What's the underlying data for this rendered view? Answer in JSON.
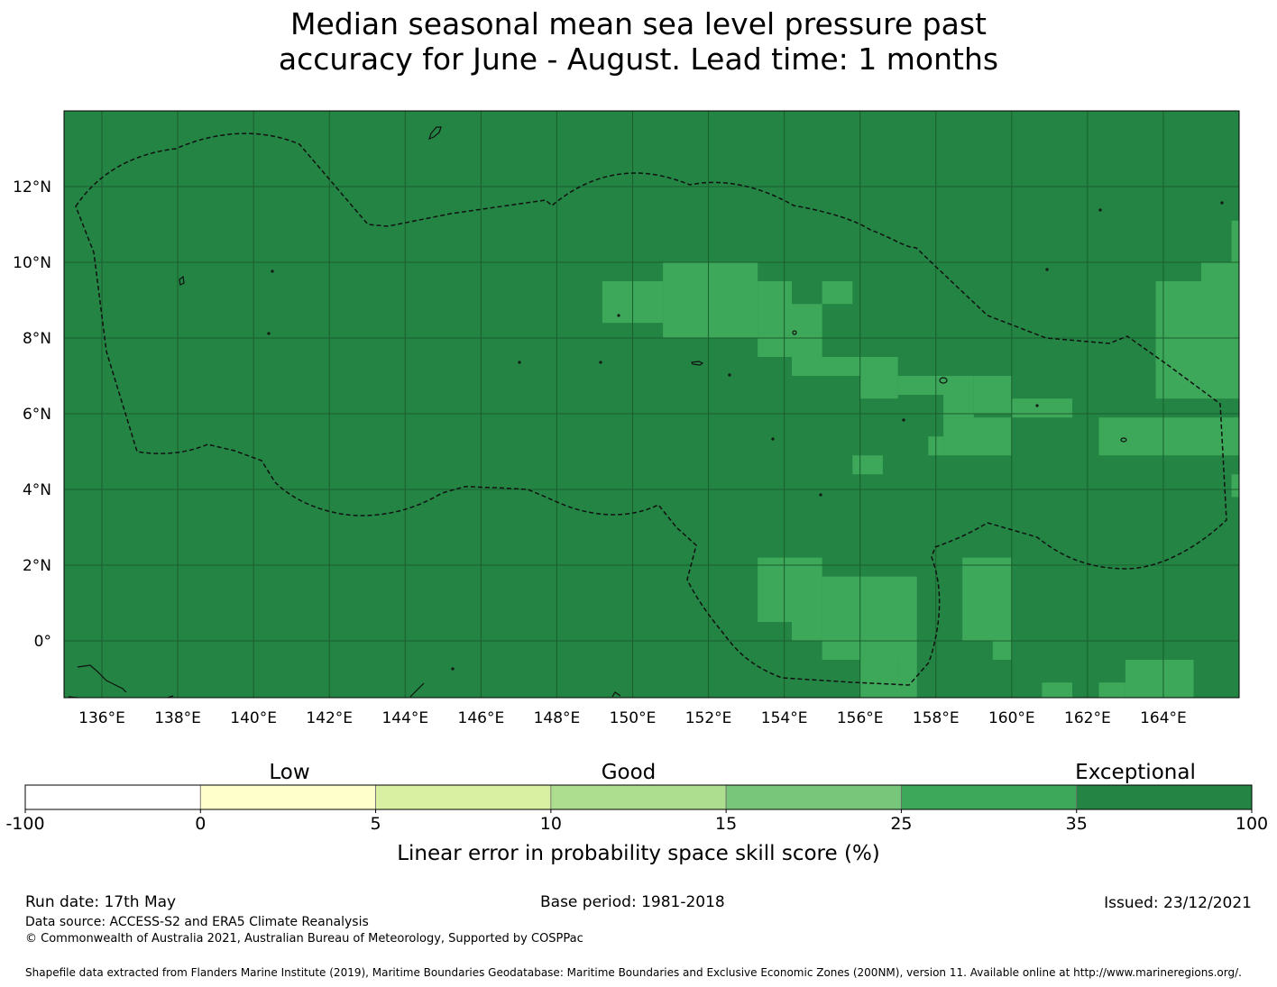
{
  "title": {
    "line1": "Median seasonal mean sea level pressure past",
    "line2": "accuracy for June - August. Lead time: 1 months"
  },
  "map": {
    "longitude_ticks": [
      "136°E",
      "138°E",
      "140°E",
      "142°E",
      "144°E",
      "146°E",
      "148°E",
      "150°E",
      "152°E",
      "154°E",
      "156°E",
      "158°E",
      "160°E",
      "162°E",
      "164°E"
    ],
    "latitude_ticks": [
      "12°N",
      "10°N",
      "8°N",
      "6°N",
      "4°N",
      "2°N",
      "0°"
    ],
    "lon_range": [
      135.0,
      166.0
    ],
    "lat_range": [
      -1.5,
      14.0
    ],
    "background_category": "35-100",
    "category_colors": {
      "25-35": "#3da85a",
      "35-100": "#238443"
    },
    "grid": true
  },
  "legend": {
    "group_labels": [
      "Low",
      "Good",
      "Exceptional"
    ],
    "bins": [
      {
        "range": "-100 to 0",
        "color": "#ffffff"
      },
      {
        "range": "0 to 5",
        "color": "#ffffcc"
      },
      {
        "range": "5 to 10",
        "color": "#d9f0a3"
      },
      {
        "range": "10 to 15",
        "color": "#addd8e"
      },
      {
        "range": "15 to 25",
        "color": "#78c679"
      },
      {
        "range": "25 to 35",
        "color": "#3da85a"
      },
      {
        "range": "35 to 100",
        "color": "#238443"
      }
    ],
    "tick_labels": [
      "-100",
      "0",
      "5",
      "10",
      "15",
      "25",
      "35",
      "100"
    ],
    "axis_label": "Linear error in probability space skill score (%)"
  },
  "footer": {
    "run_date": "Run date: 17th May",
    "base_period": "Base period: 1981-2018",
    "issued": "Issued: 23/12/2021",
    "data_source": "Data source: ACCESS-S2 and ERA5 Climate Reanalysis",
    "copyright": "© Commonwealth of Australia 2021, Australian Bureau of Meteorology, Supported by COSPPac",
    "shapefile_credit": "Shapefile data extracted from Flanders Marine Institute (2019), Maritime Boundaries Geodatabase: Maritime Boundaries and Exclusive Economic Zones (200NM), version 11. Available online at http://www.marineregions.org/."
  }
}
